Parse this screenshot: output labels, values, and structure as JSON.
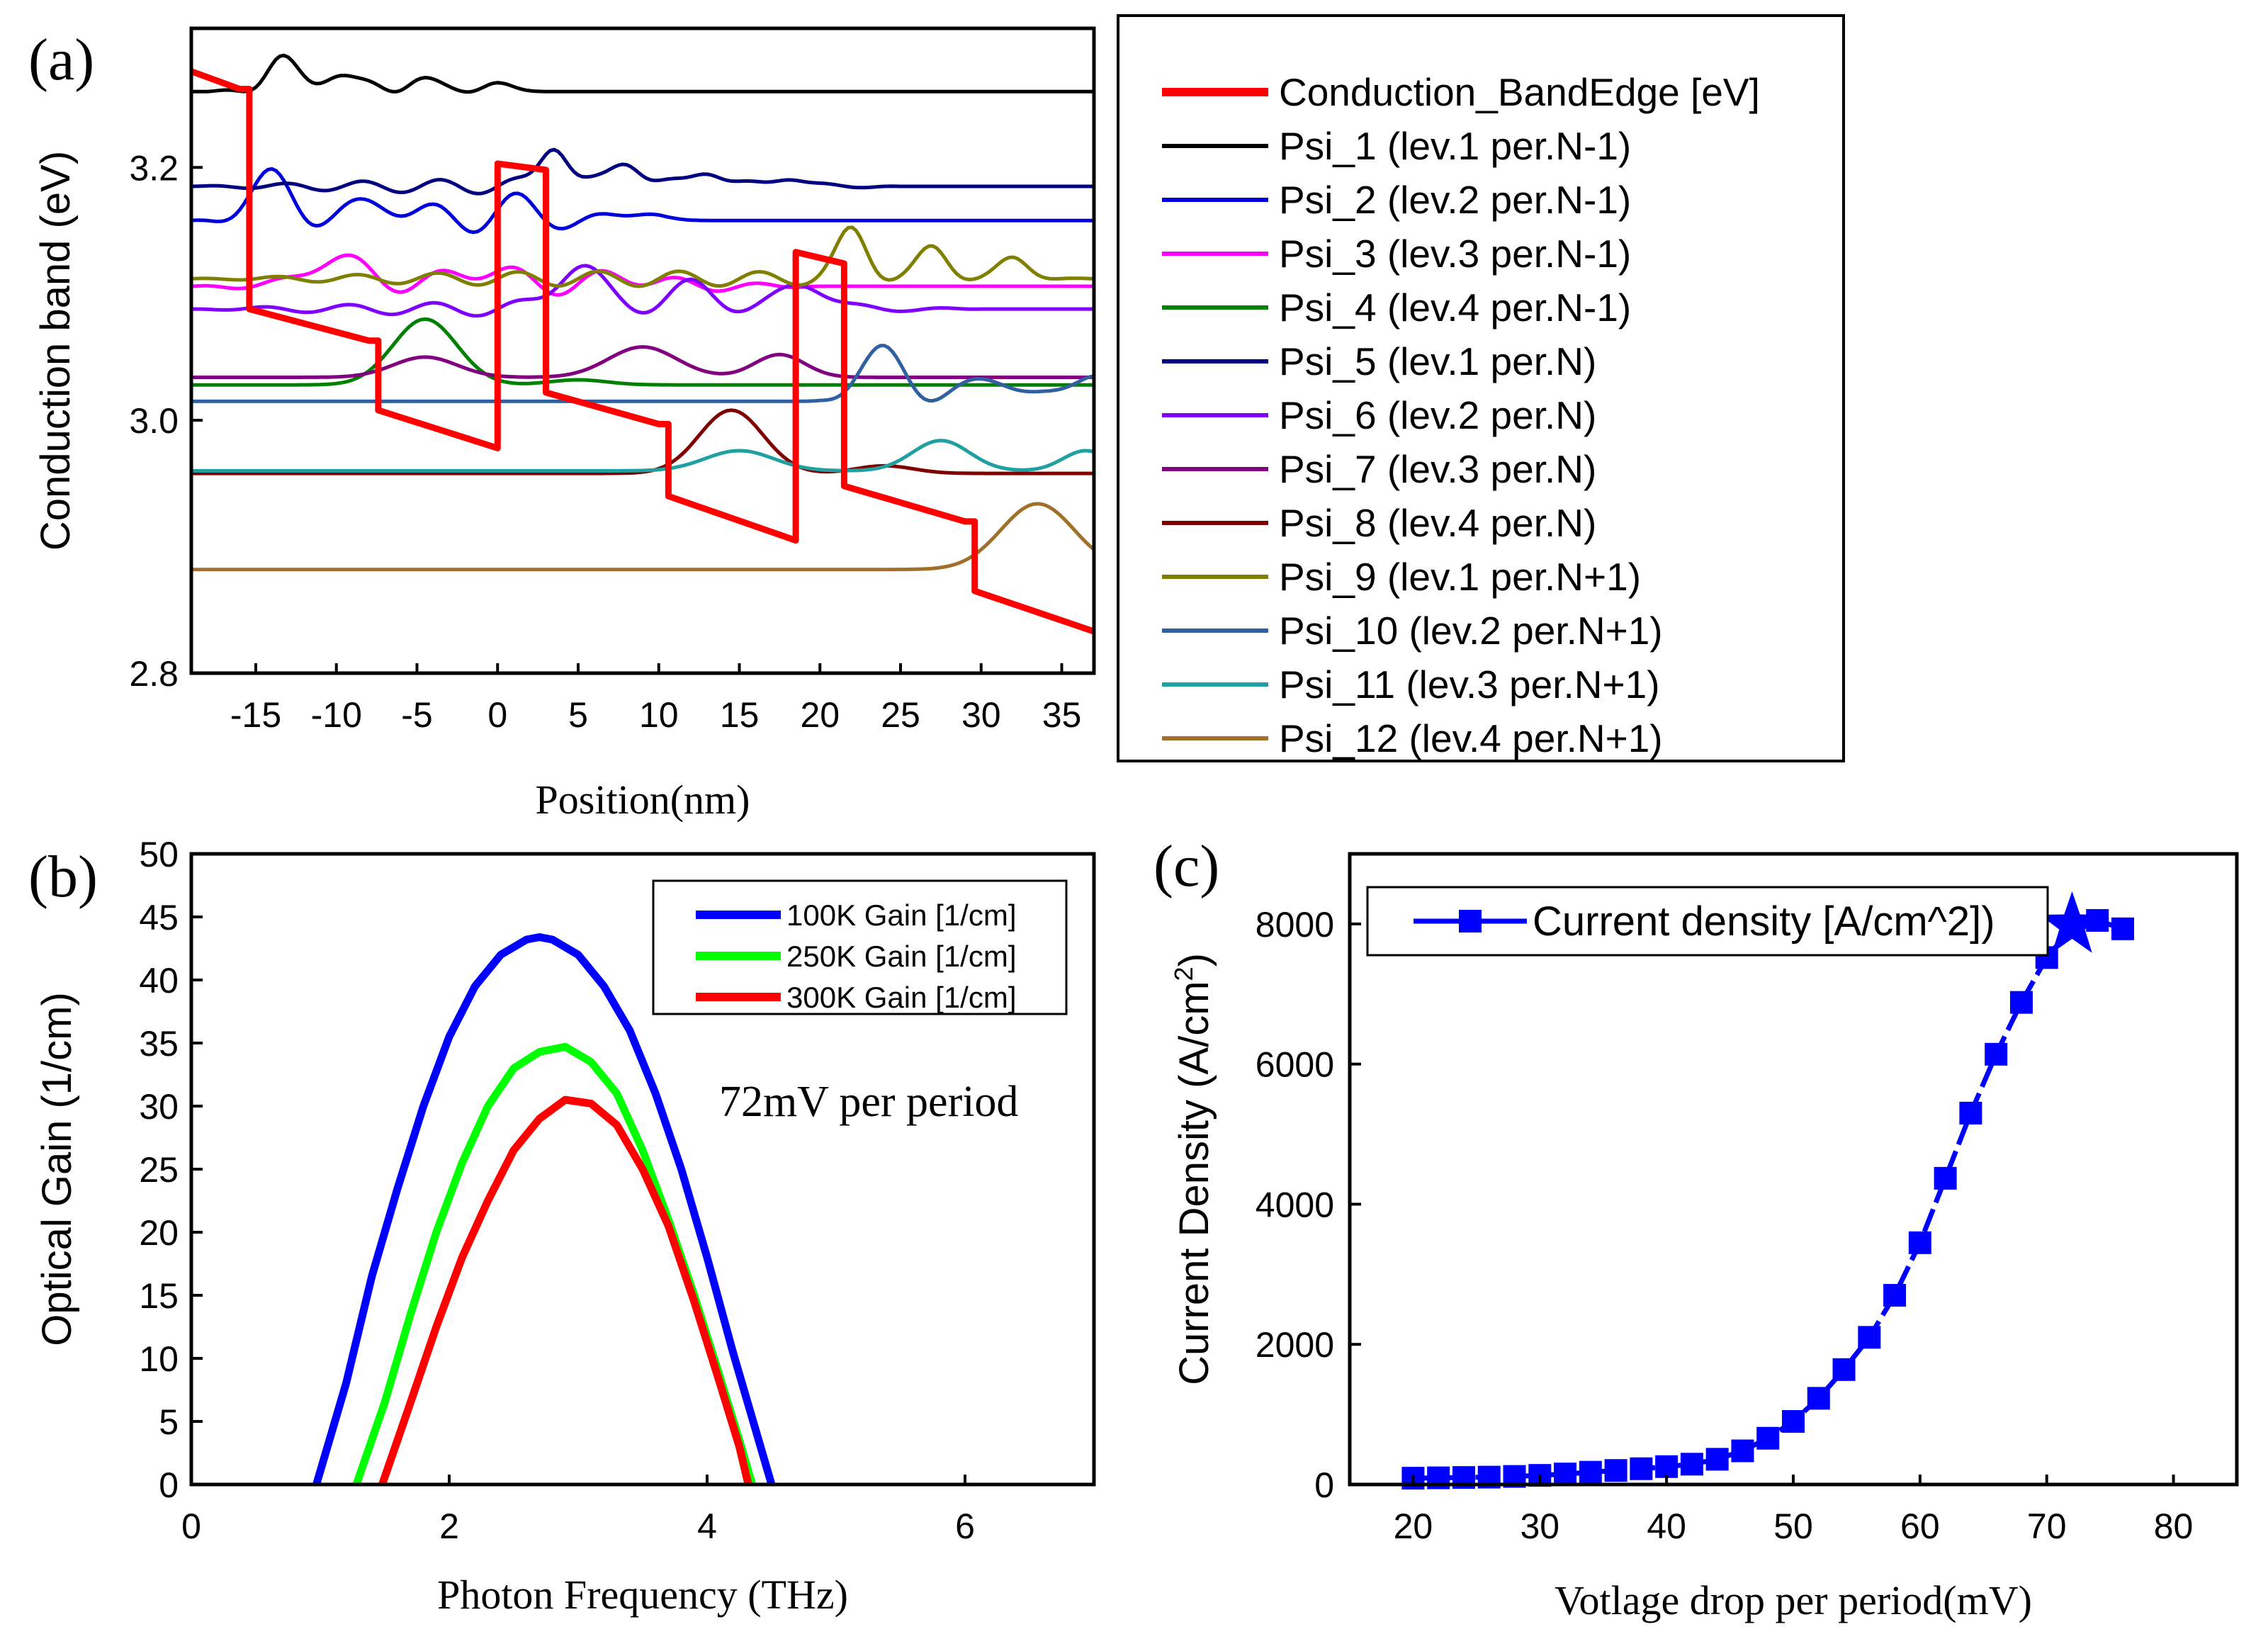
{
  "chart_data": [
    {
      "panel": "(a)",
      "type": "line",
      "xlabel": "Position(nm)",
      "ylabel": "Conduction band (eV)",
      "xlim": [
        -19,
        37
      ],
      "ylim": [
        2.8,
        3.31
      ],
      "xticks": [
        -15,
        -10,
        -5,
        0,
        5,
        10,
        15,
        20,
        25,
        30,
        35
      ],
      "yticks": [
        2.8,
        3.0,
        3.2
      ],
      "ytick_labels": [
        "2.8",
        "3.0",
        "3.2"
      ],
      "series": [
        {
          "name": "Conduction_BandEdge [eV]",
          "color": "#ff0000",
          "x": [
            -19,
            -16,
            -15.4,
            -15.4,
            -8,
            -7.4,
            -7.4,
            0,
            0,
            3,
            3,
            10,
            10.6,
            10.6,
            18.5,
            18.5,
            21.5,
            21.5,
            29,
            29.6,
            29.6,
            37
          ],
          "y": [
            3.276,
            3.262,
            3.262,
            3.088,
            3.063,
            3.063,
            3.008,
            2.978,
            3.203,
            3.198,
            3.022,
            2.997,
            2.997,
            2.94,
            2.905,
            3.133,
            3.124,
            2.948,
            2.92,
            2.92,
            2.865,
            2.833
          ]
        },
        {
          "name": "Psi_1 (lev.1 per.N-1)",
          "color": "#000000",
          "base": 3.26,
          "start": -19,
          "end": 37,
          "bumps": [
            {
              "c": -13.5,
              "w": 1.3,
              "a": 0.026
            },
            {
              "c": -10,
              "w": 1.3,
              "a": 0.018
            },
            {
              "c": -5,
              "w": 1.3,
              "a": 0.012
            },
            {
              "c": 0,
              "w": 1.3,
              "a": 0.007
            }
          ],
          "osc": {
            "from": -18,
            "to": 0,
            "amp": 0.007,
            "period": 4.6
          }
        },
        {
          "name": "Psi_2 (lev.2 per.N-1)",
          "color": "#0000dd",
          "base": 3.158,
          "start": -19,
          "end": 37,
          "bumps": [
            {
              "c": -14,
              "w": 1.8,
              "a": 0.035
            },
            {
              "c": -7,
              "w": 1.8,
              "a": 0.018
            },
            {
              "c": 1,
              "w": 1.8,
              "a": 0.012
            },
            {
              "c": 9,
              "w": 1.8,
              "a": 0.006
            }
          ],
          "osc": {
            "from": -19,
            "to": 10,
            "amp": 0.012,
            "period": 5.2
          }
        },
        {
          "name": "Psi_3 (lev.3 per.N-1)",
          "color": "#ff00ff",
          "base": 3.106,
          "start": -19,
          "end": 37,
          "bumps": [
            {
              "c": -10,
              "w": 2.5,
              "a": 0.022
            },
            {
              "c": -1,
              "w": 2.5,
              "a": 0.014
            },
            {
              "c": 8,
              "w": 2.5,
              "a": 0.008
            }
          ],
          "osc": {
            "from": -19,
            "to": 20,
            "amp": 0.008,
            "period": 5.0
          }
        },
        {
          "name": "Psi_4 (lev.4 per.N-1)",
          "color": "#008000",
          "base": 3.028,
          "start": -19,
          "end": 37,
          "bumps": [
            {
              "c": -4.5,
              "w": 2.8,
              "a": 0.052
            },
            {
              "c": 5,
              "w": 2.5,
              "a": 0.004
            }
          ],
          "osc": {
            "from": 0,
            "to": 0,
            "amp": 0,
            "period": 5
          }
        },
        {
          "name": "Psi_5 (lev.1 per.N)",
          "color": "#000080",
          "base": 3.185,
          "start": -19,
          "end": 37,
          "bumps": [
            {
              "c": 3.5,
              "w": 1.2,
              "a": 0.035
            },
            {
              "c": 8,
              "w": 1.3,
              "a": 0.022
            },
            {
              "c": 13,
              "w": 1.3,
              "a": 0.014
            },
            {
              "c": 18,
              "w": 1.3,
              "a": 0.008
            }
          ],
          "osc": {
            "from": -19,
            "to": 25,
            "amp": 0.006,
            "period": 4.8
          }
        },
        {
          "name": "Psi_6 (lev.2 per.N)",
          "color": "#8000ff",
          "base": 3.088,
          "start": -19,
          "end": 37,
          "bumps": [
            {
              "c": 5,
              "w": 2.0,
              "a": 0.035
            },
            {
              "c": 12,
              "w": 2.0,
              "a": 0.018
            },
            {
              "c": 19,
              "w": 2.0,
              "a": 0.02
            }
          ],
          "osc": {
            "from": -19,
            "to": 30,
            "amp": 0.006,
            "period": 5.3
          }
        },
        {
          "name": "Psi_7 (lev.3 per.N)",
          "color": "#800080",
          "base": 3.034,
          "start": -19,
          "end": 37,
          "bumps": [
            {
              "c": -4.5,
              "w": 2.8,
              "a": 0.016
            },
            {
              "c": 9,
              "w": 3.0,
              "a": 0.024
            },
            {
              "c": 17.5,
              "w": 2.2,
              "a": 0.018
            }
          ],
          "osc": {
            "from": 0,
            "to": 0,
            "amp": 0,
            "period": 5
          }
        },
        {
          "name": "Psi_8 (lev.4 per.N)",
          "color": "#800000",
          "base": 2.958,
          "start": -19,
          "end": 37,
          "bumps": [
            {
              "c": 14.5,
              "w": 2.8,
              "a": 0.05
            },
            {
              "c": 24,
              "w": 2.5,
              "a": 0.006
            }
          ],
          "osc": {
            "from": 0,
            "to": 0,
            "amp": 0,
            "period": 5
          }
        },
        {
          "name": "Psi_9 (lev.1 per.N+1)",
          "color": "#808000",
          "base": 3.112,
          "start": -19,
          "end": 37,
          "bumps": [
            {
              "c": 22,
              "w": 1.3,
              "a": 0.038
            },
            {
              "c": 27,
              "w": 1.3,
              "a": 0.024
            },
            {
              "c": 32,
              "w": 1.3,
              "a": 0.016
            }
          ],
          "osc": {
            "from": -19,
            "to": 37,
            "amp": 0.006,
            "period": 5.0
          }
        },
        {
          "name": "Psi_10 (lev.2 per.N+1)",
          "color": "#3060a0",
          "base": 3.015,
          "start": -19,
          "end": 37,
          "bumps": [
            {
              "c": 24,
              "w": 2.0,
              "a": 0.04
            },
            {
              "c": 31,
              "w": 2.0,
              "a": 0.02
            },
            {
              "c": 37,
              "w": 2.0,
              "a": 0.02
            }
          ],
          "osc": {
            "from": 20,
            "to": 37,
            "amp": 0.008,
            "period": 5.5
          }
        },
        {
          "name": "Psi_11 (lev.3 per.N+1)",
          "color": "#20a0a0",
          "base": 2.96,
          "start": -19,
          "end": 37,
          "bumps": [
            {
              "c": 15,
              "w": 3.0,
              "a": 0.016
            },
            {
              "c": 27.5,
              "w": 2.5,
              "a": 0.024
            },
            {
              "c": 36.5,
              "w": 2.0,
              "a": 0.016
            }
          ],
          "osc": {
            "from": 0,
            "to": 0,
            "amp": 0,
            "period": 5
          }
        },
        {
          "name": "Psi_12 (lev.4 per.N+1)",
          "color": "#a0702a",
          "base": 2.882,
          "start": -19,
          "end": 37,
          "bumps": [
            {
              "c": 33.5,
              "w": 3.2,
              "a": 0.052
            }
          ],
          "osc": {
            "from": 0,
            "to": 0,
            "amp": 0,
            "period": 5
          }
        }
      ]
    },
    {
      "panel": "(b)",
      "type": "line",
      "xlabel": "Photon Frequency (THz)",
      "ylabel": "Optical Gain (1/cm)",
      "xlim": [
        0,
        7
      ],
      "ylim": [
        0,
        50
      ],
      "xticks": [
        0,
        2,
        4,
        6
      ],
      "yticks": [
        0,
        5,
        10,
        15,
        20,
        25,
        30,
        35,
        40,
        45,
        50
      ],
      "annotation": "72mV per period",
      "series": [
        {
          "name": "100K Gain [1/cm]",
          "color": "#0000ff",
          "x": [
            0.97,
            1.2,
            1.4,
            1.6,
            1.8,
            2.0,
            2.2,
            2.4,
            2.6,
            2.7,
            2.8,
            3.0,
            3.2,
            3.4,
            3.6,
            3.8,
            4.0,
            4.2,
            4.4,
            4.5
          ],
          "y": [
            0,
            8,
            16.5,
            23.5,
            30,
            35.5,
            39.5,
            42,
            43.2,
            43.4,
            43.2,
            42,
            39.5,
            36,
            31,
            25,
            18,
            10.5,
            3.5,
            0
          ]
        },
        {
          "name": "250K Gain [1/cm]",
          "color": "#00ff00",
          "x": [
            1.28,
            1.5,
            1.7,
            1.9,
            2.1,
            2.3,
            2.5,
            2.7,
            2.9,
            3.1,
            3.3,
            3.5,
            3.7,
            3.9,
            4.1,
            4.25,
            4.35
          ],
          "y": [
            0,
            6.5,
            13.5,
            20,
            25.5,
            30,
            33,
            34.3,
            34.7,
            33.5,
            31,
            26.5,
            21,
            15,
            8.5,
            3.5,
            0
          ]
        },
        {
          "name": "300K Gain [1/cm]",
          "color": "#ff0000",
          "x": [
            1.48,
            1.7,
            1.9,
            2.1,
            2.3,
            2.5,
            2.7,
            2.9,
            3.1,
            3.3,
            3.5,
            3.7,
            3.9,
            4.1,
            4.25,
            4.32
          ],
          "y": [
            0,
            6.5,
            12.5,
            18,
            22.5,
            26.5,
            29,
            30.5,
            30.2,
            28.5,
            25,
            20.5,
            14.5,
            8,
            3,
            0
          ]
        }
      ]
    },
    {
      "panel": "(c)",
      "type": "line",
      "xlabel": "Votlage drop per period(mV)",
      "ylabel": "Current Density (A/cm",
      "ylabel_sup": "2",
      "ylabel_close": ")",
      "xlim": [
        15,
        85
      ],
      "ylim": [
        0,
        9000
      ],
      "xticks": [
        20,
        30,
        40,
        50,
        60,
        70,
        80
      ],
      "yticks": [
        0,
        2000,
        4000,
        6000,
        8000
      ],
      "highlight_marker": {
        "shape": "star",
        "x": 72,
        "y": 7980
      },
      "series": [
        {
          "name": "Current density [A/cm^2])",
          "color": "#0000ff",
          "marker": "square",
          "x": [
            20,
            22,
            24,
            26,
            28,
            30,
            32,
            34,
            36,
            38,
            40,
            42,
            44,
            46,
            48,
            50,
            52,
            54,
            56,
            58,
            60,
            62,
            64,
            66,
            68,
            70,
            72,
            74,
            76
          ],
          "y": [
            90,
            95,
            100,
            105,
            115,
            130,
            150,
            175,
            200,
            225,
            255,
            290,
            360,
            480,
            660,
            900,
            1230,
            1640,
            2100,
            2700,
            3450,
            4370,
            5300,
            6140,
            6880,
            7520,
            7950,
            8050,
            7930
          ]
        }
      ]
    }
  ]
}
